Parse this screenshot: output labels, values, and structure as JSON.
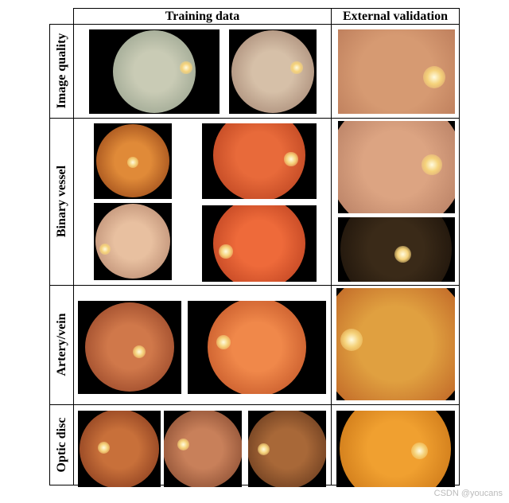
{
  "header": {
    "columns": [
      "Training data",
      "External validation"
    ]
  },
  "rows": [
    "Image quality",
    "Binary vessel",
    "Artery/vein",
    "Optic disc"
  ],
  "watermark": "CSDN @youcans"
}
